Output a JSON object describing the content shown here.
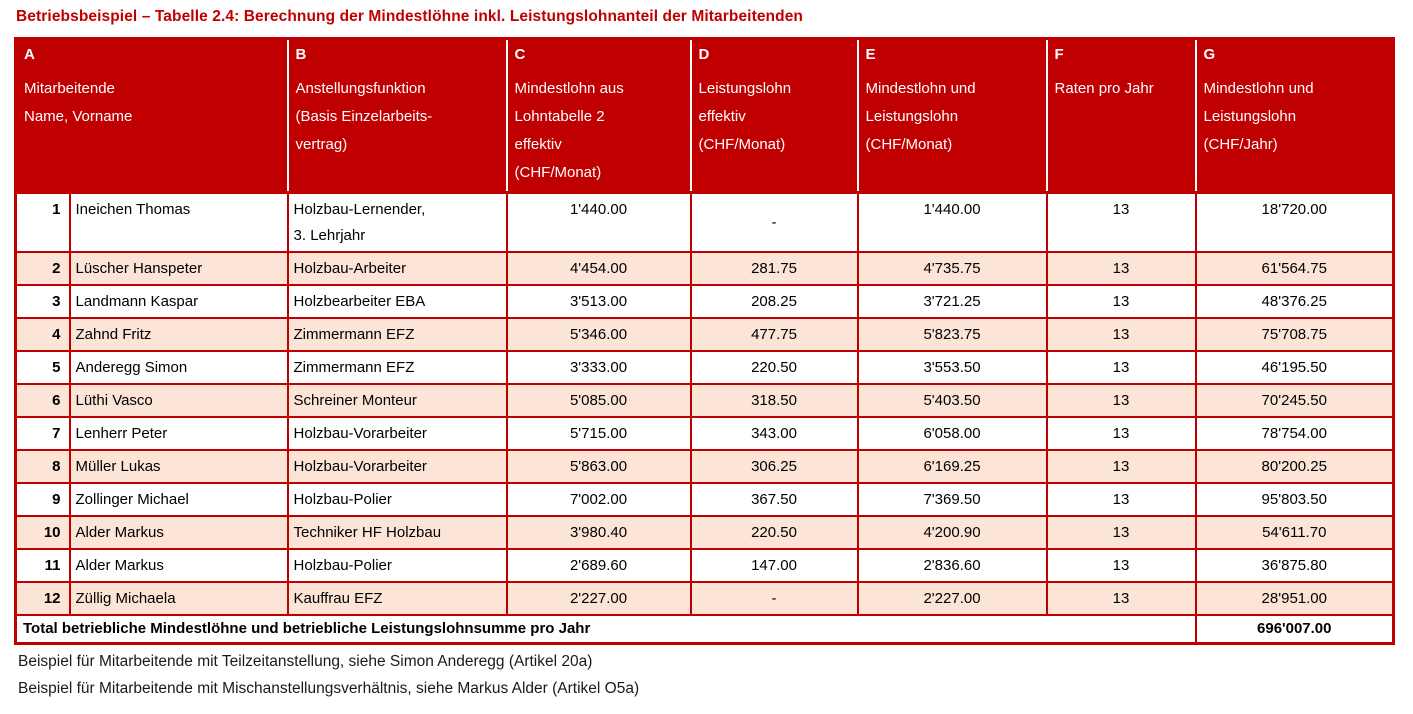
{
  "title": "Betriebsbeispiel – Tabelle 2.4: Berechnung der Mindestlöhne inkl. Leistungslohnanteil der Mitarbeitenden",
  "colors": {
    "accent_red": "#C00000",
    "shaded_row": "#FCE4D6",
    "header_text": "#FFFFFF",
    "body_text": "#000000"
  },
  "table": {
    "columns": [
      {
        "letter": "A",
        "lines": [
          "Mitarbeitende",
          "Name, Vorname"
        ]
      },
      {
        "letter": "B",
        "lines": [
          "Anstellungsfunktion",
          "(Basis Einzelarbeits-",
          "vertrag)"
        ]
      },
      {
        "letter": "C",
        "lines": [
          "Mindestlohn aus",
          "Lohntabelle 2",
          "effektiv",
          "(CHF/Monat)"
        ]
      },
      {
        "letter": "D",
        "lines": [
          "Leistungslohn",
          "effektiv",
          "(CHF/Monat)"
        ]
      },
      {
        "letter": "E",
        "lines": [
          "Mindestlohn und",
          "Leistungslohn",
          "(CHF/Monat)"
        ]
      },
      {
        "letter": "F",
        "lines": [
          "Raten pro Jahr"
        ]
      },
      {
        "letter": "G",
        "lines": [
          "Mindestlohn und",
          "Leistungslohn",
          "(CHF/Jahr)"
        ]
      }
    ],
    "rows": [
      {
        "num": "1",
        "name": "Ineichen Thomas",
        "func": "Holzbau-Lernender,\n3. Lehrjahr",
        "c": "1'440.00",
        "d": "-",
        "e": "1'440.00",
        "f": "13",
        "g": "18'720.00",
        "shaded": false,
        "tall": true
      },
      {
        "num": "2",
        "name": "Lüscher Hanspeter",
        "func": "Holzbau-Arbeiter",
        "c": "4'454.00",
        "d": "281.75",
        "e": "4'735.75",
        "f": "13",
        "g": "61'564.75",
        "shaded": true,
        "tall": false
      },
      {
        "num": "3",
        "name": "Landmann Kaspar",
        "func": "Holzbearbeiter EBA",
        "c": "3'513.00",
        "d": "208.25",
        "e": "3'721.25",
        "f": "13",
        "g": "48'376.25",
        "shaded": false,
        "tall": false
      },
      {
        "num": "4",
        "name": "Zahnd Fritz",
        "func": "Zimmermann EFZ",
        "c": "5'346.00",
        "d": "477.75",
        "e": "5'823.75",
        "f": "13",
        "g": "75'708.75",
        "shaded": true,
        "tall": false
      },
      {
        "num": "5",
        "name": "Anderegg Simon",
        "func": "Zimmermann EFZ",
        "c": "3'333.00",
        "d": "220.50",
        "e": "3'553.50",
        "f": "13",
        "g": "46'195.50",
        "shaded": false,
        "tall": false
      },
      {
        "num": "6",
        "name": "Lüthi Vasco",
        "func": "Schreiner Monteur",
        "c": "5'085.00",
        "d": "318.50",
        "e": "5'403.50",
        "f": "13",
        "g": "70'245.50",
        "shaded": true,
        "tall": false
      },
      {
        "num": "7",
        "name": "Lenherr Peter",
        "func": "Holzbau-Vorarbeiter",
        "c": "5'715.00",
        "d": "343.00",
        "e": "6'058.00",
        "f": "13",
        "g": "78'754.00",
        "shaded": false,
        "tall": false
      },
      {
        "num": "8",
        "name": "Müller Lukas",
        "func": "Holzbau-Vorarbeiter",
        "c": "5'863.00",
        "d": "306.25",
        "e": "6'169.25",
        "f": "13",
        "g": "80'200.25",
        "shaded": true,
        "tall": false
      },
      {
        "num": "9",
        "name": "Zollinger Michael",
        "func": "Holzbau-Polier",
        "c": "7'002.00",
        "d": "367.50",
        "e": "7'369.50",
        "f": "13",
        "g": "95'803.50",
        "shaded": false,
        "tall": false
      },
      {
        "num": "10",
        "name": "Alder Markus",
        "func": "Techniker HF Holzbau",
        "c": "3'980.40",
        "d": "220.50",
        "e": "4'200.90",
        "f": "13",
        "g": "54'611.70",
        "shaded": true,
        "tall": false
      },
      {
        "num": "11",
        "name": "Alder Markus",
        "func": "Holzbau-Polier",
        "c": "2'689.60",
        "d": "147.00",
        "e": "2'836.60",
        "f": "13",
        "g": "36'875.80",
        "shaded": false,
        "tall": false
      },
      {
        "num": "12",
        "name": "Züllig Michaela",
        "func": "Kauffrau EFZ",
        "c": "2'227.00",
        "d": "-",
        "e": "2'227.00",
        "f": "13",
        "g": "28'951.00",
        "shaded": true,
        "tall": false
      }
    ],
    "total": {
      "label": "Total betriebliche Mindestlöhne und betriebliche Leistungslohnsumme pro Jahr",
      "value": "696'007.00"
    }
  },
  "footnotes": [
    "Beispiel für Mitarbeitende mit Teilzeitanstellung, siehe Simon Anderegg (Artikel 20a)",
    "Beispiel für Mitarbeitende mit Mischanstellungsverhältnis, siehe Markus Alder (Artikel O5a)"
  ]
}
